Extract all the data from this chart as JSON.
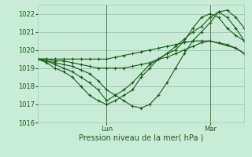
{
  "title": "",
  "xlabel": "Pression niveau de la mer( hPa )",
  "background_color": "#c8ecd8",
  "grid_color": "#a0c8b8",
  "line_color": "#1a5c1a",
  "ylim": [
    1016,
    1022.5
  ],
  "yticks": [
    1016,
    1017,
    1018,
    1019,
    1020,
    1021,
    1022
  ],
  "xlim": [
    0,
    72
  ],
  "lun_x": 24,
  "mar_x": 60,
  "series": [
    {
      "x": [
        0,
        3,
        6,
        9,
        12,
        15,
        18,
        21,
        24,
        27,
        30,
        33,
        36,
        39,
        42,
        45,
        48,
        51,
        54,
        57,
        60,
        63,
        66,
        69,
        72
      ],
      "y": [
        1019.5,
        1019.3,
        1019.0,
        1018.8,
        1018.5,
        1018.0,
        1017.5,
        1017.2,
        1017.0,
        1017.2,
        1017.5,
        1017.8,
        1018.5,
        1019.0,
        1019.5,
        1019.8,
        1020.0,
        1020.5,
        1021.2,
        1021.8,
        1022.0,
        1021.8,
        1021.2,
        1020.8,
        1020.5
      ]
    },
    {
      "x": [
        0,
        3,
        6,
        9,
        12,
        15,
        18,
        21,
        24,
        27,
        30,
        33,
        36,
        39,
        42,
        45,
        48,
        51,
        54,
        57,
        60,
        63,
        66,
        69,
        72
      ],
      "y": [
        1019.5,
        1019.4,
        1019.2,
        1019.0,
        1018.8,
        1018.5,
        1018.2,
        1017.8,
        1017.2,
        1017.5,
        1017.8,
        1018.2,
        1018.7,
        1019.2,
        1019.5,
        1019.8,
        1020.2,
        1020.6,
        1021.0,
        1021.3,
        1021.8,
        1022.1,
        1021.8,
        1021.2,
        1020.5
      ]
    },
    {
      "x": [
        0,
        3,
        6,
        9,
        12,
        15,
        18,
        21,
        24,
        27,
        30,
        33,
        36,
        39,
        42,
        45,
        48,
        51,
        54,
        57,
        60,
        63,
        66,
        69,
        72
      ],
      "y": [
        1019.5,
        1019.4,
        1019.3,
        1019.2,
        1019.1,
        1018.9,
        1018.7,
        1018.3,
        1017.8,
        1017.5,
        1017.2,
        1016.9,
        1016.8,
        1017.0,
        1017.5,
        1018.2,
        1019.0,
        1019.8,
        1020.5,
        1021.0,
        1021.5,
        1022.1,
        1022.2,
        1021.8,
        1021.2
      ]
    },
    {
      "x": [
        0,
        3,
        6,
        9,
        12,
        15,
        18,
        21,
        24,
        27,
        30,
        33,
        36,
        39,
        42,
        45,
        48,
        51,
        54,
        57,
        60,
        63,
        66,
        69,
        72
      ],
      "y": [
        1019.5,
        1019.5,
        1019.4,
        1019.4,
        1019.3,
        1019.2,
        1019.1,
        1019.0,
        1019.0,
        1019.0,
        1019.0,
        1019.1,
        1019.2,
        1019.3,
        1019.5,
        1019.6,
        1019.8,
        1020.0,
        1020.2,
        1020.4,
        1020.5,
        1020.4,
        1020.3,
        1020.1,
        1019.8
      ]
    },
    {
      "x": [
        0,
        3,
        6,
        9,
        12,
        15,
        18,
        21,
        24,
        27,
        30,
        33,
        36,
        39,
        42,
        45,
        48,
        51,
        54,
        57,
        60,
        69,
        72
      ],
      "y": [
        1019.5,
        1019.5,
        1019.5,
        1019.5,
        1019.5,
        1019.5,
        1019.5,
        1019.5,
        1019.5,
        1019.6,
        1019.7,
        1019.8,
        1019.9,
        1020.0,
        1020.1,
        1020.2,
        1020.3,
        1020.4,
        1020.5,
        1020.5,
        1020.5,
        1020.1,
        1019.8
      ]
    }
  ]
}
